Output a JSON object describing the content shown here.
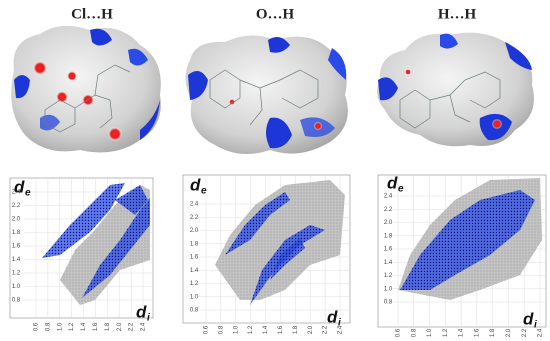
{
  "panels": [
    {
      "title": "Cl…H",
      "plot": {
        "y_label": "d",
        "y_sub": "e",
        "x_label": "d",
        "x_sub": "i",
        "yticks": [
          "2.4",
          "2.2",
          "2.0",
          "1.8",
          "1.6",
          "1.4",
          "1.2",
          "1.0",
          "0.8"
        ],
        "xticks": [
          "0.6",
          "0.8",
          "1.0",
          "1.2",
          "1.4",
          "1.6",
          "1.8",
          "2.0",
          "2.2",
          "2.4"
        ]
      }
    },
    {
      "title": "O…H",
      "plot": {
        "y_label": "d",
        "y_sub": "e",
        "x_label": "d",
        "x_sub": "i",
        "yticks": [
          "2.4",
          "2.2",
          "2.0",
          "1.8",
          "1.6",
          "1.4",
          "1.2",
          "1.0",
          "0.8"
        ],
        "xticks": [
          "0.6",
          "0.8",
          "1.0",
          "1.2",
          "1.4",
          "1.6",
          "1.8",
          "2.0",
          "2.2",
          "2.4"
        ]
      }
    },
    {
      "title": "H…H",
      "plot": {
        "y_label": "d",
        "y_sub": "e",
        "x_label": "d",
        "x_sub": "i",
        "yticks": [
          "2.4",
          "2.2",
          "2.0",
          "1.8",
          "1.6",
          "1.4",
          "1.2",
          "1.0",
          "0.8"
        ],
        "xticks": [
          "0.6",
          "0.8",
          "1.0",
          "1.2",
          "1.4",
          "1.6",
          "1.8",
          "2.0",
          "2.2",
          "2.4"
        ]
      }
    }
  ]
}
